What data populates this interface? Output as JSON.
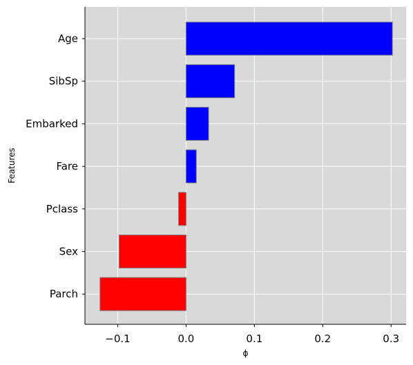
{
  "chart_data": {
    "type": "bar",
    "orientation": "horizontal",
    "categories": [
      "Age",
      "SibSp",
      "Embarked",
      "Fare",
      "Pclass",
      "Sex",
      "Parch"
    ],
    "values": [
      0.302,
      0.071,
      0.033,
      0.015,
      -0.011,
      -0.098,
      -0.126
    ],
    "xlabel": "ϕ",
    "ylabel": "Features",
    "xlim": [
      -0.148,
      0.322
    ],
    "xticks": [
      -0.1,
      0.0,
      0.1,
      0.2,
      0.3
    ],
    "xtick_labels": [
      "−0.1",
      "0.0",
      "0.1",
      "0.2",
      "0.3"
    ],
    "grid": true,
    "positive_color": "#0000ff",
    "negative_color": "#ff0000",
    "edge_color": "#808080",
    "background_color": "#d9d9d9"
  }
}
